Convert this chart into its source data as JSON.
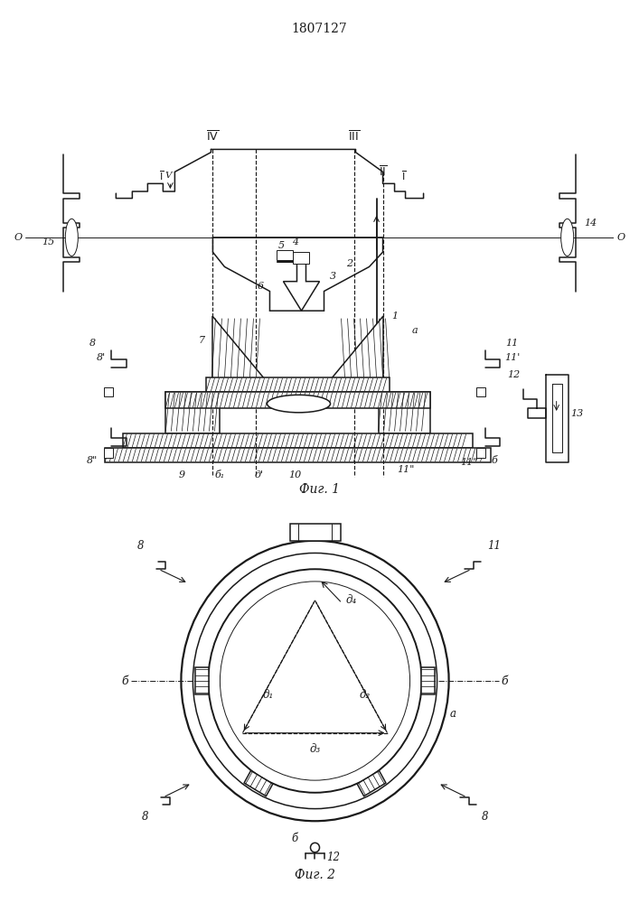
{
  "title": "1807127",
  "fig1_caption": "Фиг. 1",
  "fig2_caption": "Фиг. 2",
  "bg_color": "#ffffff",
  "lc": "#1a1a1a",
  "lw": 1.1,
  "tlw": 0.7,
  "dlw": 0.85
}
